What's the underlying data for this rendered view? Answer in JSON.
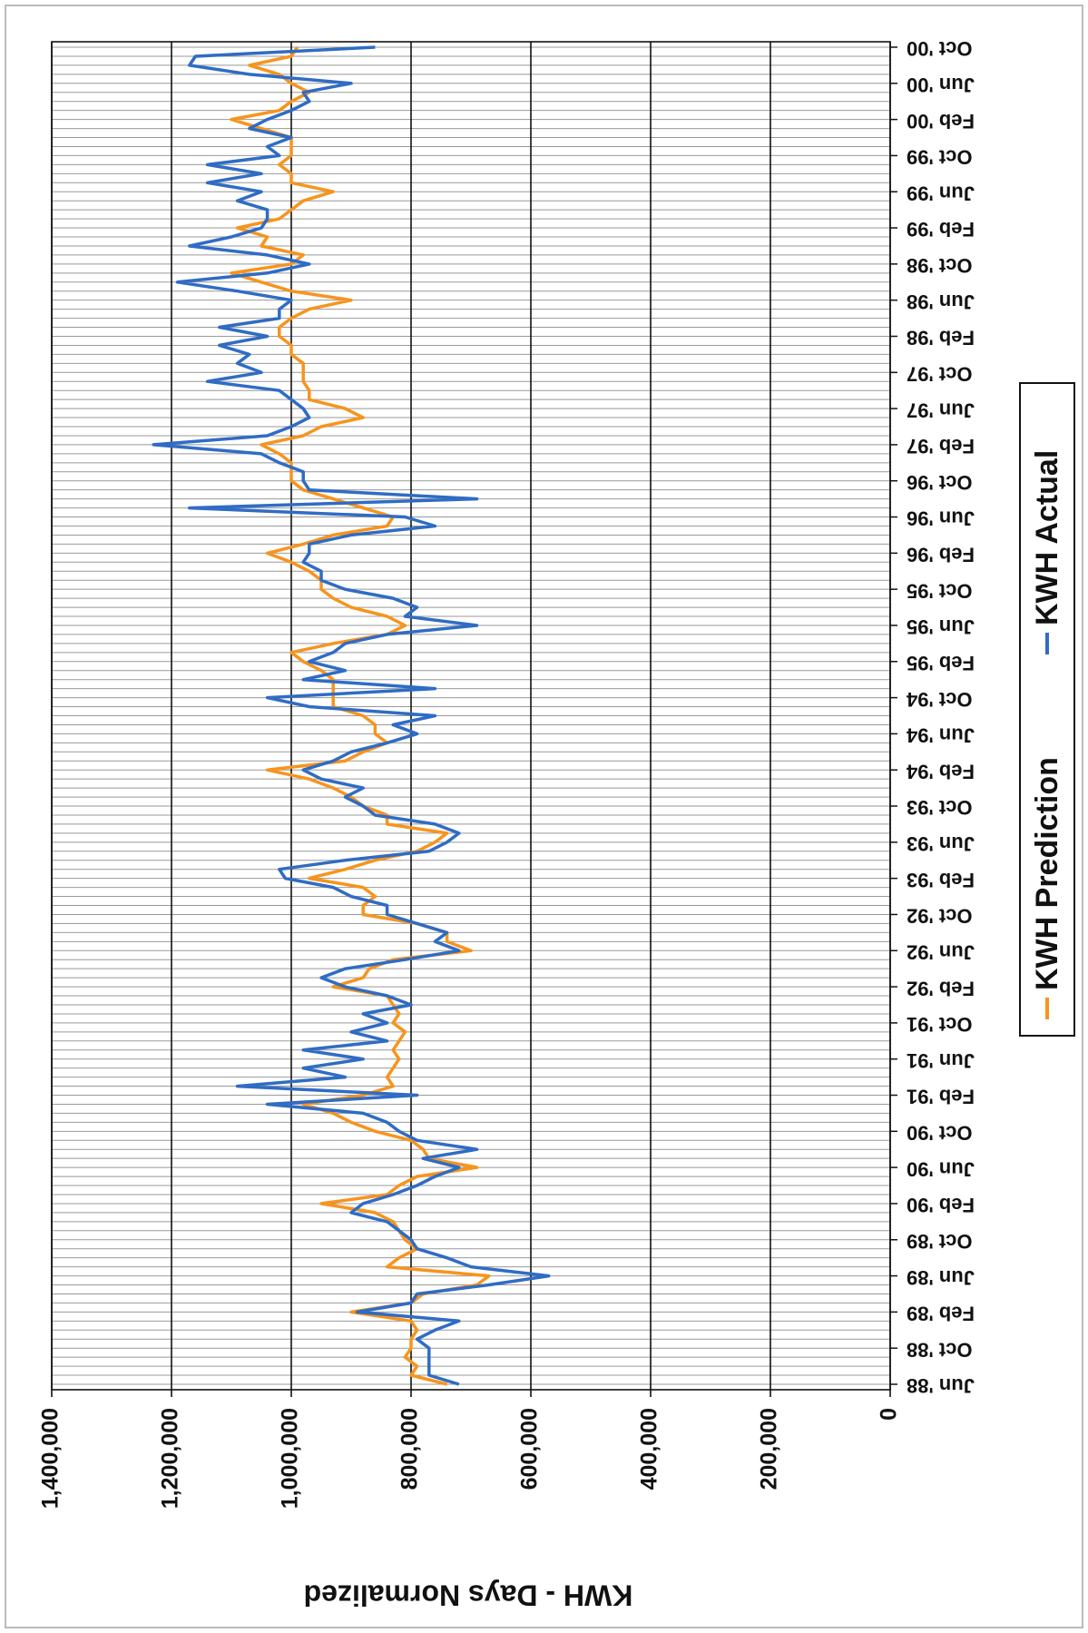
{
  "chart_data": {
    "type": "line",
    "ylabel": "KWH - Days Normalized",
    "categories": [
      "Jun '88",
      null,
      null,
      null,
      "Oct '88",
      null,
      null,
      null,
      "Feb '89",
      null,
      null,
      null,
      "Jun '89",
      null,
      null,
      null,
      "Oct '89",
      null,
      null,
      null,
      "Feb '90",
      null,
      null,
      null,
      "Jun '90",
      null,
      null,
      null,
      "Oct '90",
      null,
      null,
      null,
      "Feb '91",
      null,
      null,
      null,
      "Jun '91",
      null,
      null,
      null,
      "Oct '91",
      null,
      null,
      null,
      "Feb '92",
      null,
      null,
      null,
      "Jun '92",
      null,
      null,
      null,
      "Oct '92",
      null,
      null,
      null,
      "Feb '93",
      null,
      null,
      null,
      "Jun '93",
      null,
      null,
      null,
      "Oct '93",
      null,
      null,
      null,
      "Feb '94",
      null,
      null,
      null,
      "Jun '94",
      null,
      null,
      null,
      "Oct '94",
      null,
      null,
      null,
      "Feb '95",
      null,
      null,
      null,
      "Jun '95",
      null,
      null,
      null,
      "Oct '95",
      null,
      null,
      null,
      "Feb '96",
      null,
      null,
      null,
      "Jun '96",
      null,
      null,
      null,
      "Oct '96",
      null,
      null,
      null,
      "Feb '97",
      null,
      null,
      null,
      "Jun '97",
      null,
      null,
      null,
      "Oct '97",
      null,
      null,
      null,
      "Feb '98",
      null,
      null,
      null,
      "Jun '98",
      null,
      null,
      null,
      "Oct '98",
      null,
      null,
      null,
      "Feb '99",
      null,
      null,
      null,
      "Jun '99",
      null,
      null,
      null,
      "Oct '99",
      null,
      null,
      null,
      "Feb '00",
      null,
      null,
      null,
      "Jun '00",
      null,
      null,
      null,
      "Oct '00"
    ],
    "series": [
      {
        "name": "KWH Prediction",
        "color": "#f7941d",
        "values": [
          740000,
          800000,
          790000,
          810000,
          800000,
          800000,
          790000,
          800000,
          900000,
          800000,
          780000,
          690000,
          670000,
          840000,
          820000,
          790000,
          810000,
          820000,
          830000,
          860000,
          950000,
          840000,
          820000,
          790000,
          690000,
          770000,
          780000,
          800000,
          860000,
          900000,
          930000,
          980000,
          880000,
          830000,
          840000,
          830000,
          820000,
          830000,
          820000,
          810000,
          830000,
          820000,
          830000,
          840000,
          930000,
          880000,
          870000,
          830000,
          700000,
          740000,
          740000,
          790000,
          880000,
          880000,
          860000,
          880000,
          970000,
          910000,
          860000,
          790000,
          760000,
          740000,
          840000,
          840000,
          880000,
          900000,
          930000,
          970000,
          1040000,
          910000,
          880000,
          840000,
          860000,
          860000,
          880000,
          930000,
          930000,
          930000,
          930000,
          950000,
          980000,
          1000000,
          930000,
          840000,
          810000,
          840000,
          900000,
          930000,
          950000,
          950000,
          970000,
          1000000,
          1040000,
          980000,
          930000,
          840000,
          830000,
          880000,
          930000,
          980000,
          1000000,
          1000000,
          1000000,
          1020000,
          1050000,
          980000,
          950000,
          880000,
          910000,
          970000,
          970000,
          980000,
          980000,
          980000,
          1000000,
          1000000,
          1020000,
          1020000,
          1000000,
          970000,
          900000,
          1000000,
          1050000,
          1100000,
          1000000,
          980000,
          1050000,
          1040000,
          1090000,
          1020000,
          1000000,
          980000,
          930000,
          1000000,
          1000000,
          1020000,
          1000000,
          1000000,
          1000000,
          1050000,
          1100000,
          1020000,
          1000000,
          970000,
          1000000,
          1020000,
          1070000,
          1000000,
          990000
        ]
      },
      {
        "name": "KWH Actual",
        "color": "#2f6cc4",
        "values": [
          720000,
          770000,
          770000,
          770000,
          770000,
          790000,
          760000,
          720000,
          890000,
          800000,
          790000,
          670000,
          570000,
          700000,
          740000,
          790000,
          800000,
          820000,
          840000,
          900000,
          880000,
          830000,
          790000,
          760000,
          720000,
          780000,
          690000,
          790000,
          820000,
          840000,
          880000,
          1040000,
          790000,
          1090000,
          910000,
          980000,
          880000,
          980000,
          840000,
          900000,
          840000,
          880000,
          800000,
          840000,
          910000,
          950000,
          910000,
          810000,
          720000,
          760000,
          740000,
          790000,
          840000,
          840000,
          900000,
          930000,
          1010000,
          1020000,
          910000,
          770000,
          740000,
          720000,
          760000,
          860000,
          880000,
          910000,
          880000,
          950000,
          980000,
          930000,
          900000,
          840000,
          790000,
          830000,
          760000,
          970000,
          1040000,
          760000,
          980000,
          910000,
          970000,
          930000,
          910000,
          840000,
          690000,
          810000,
          790000,
          830000,
          910000,
          950000,
          950000,
          980000,
          970000,
          970000,
          900000,
          760000,
          810000,
          1170000,
          690000,
          970000,
          980000,
          980000,
          1020000,
          1050000,
          1230000,
          1040000,
          1000000,
          970000,
          980000,
          1000000,
          1020000,
          1140000,
          1050000,
          1090000,
          1070000,
          1120000,
          1040000,
          1120000,
          1020000,
          1020000,
          1000000,
          1090000,
          1190000,
          1040000,
          970000,
          1040000,
          1170000,
          1100000,
          1050000,
          1040000,
          1040000,
          1090000,
          1050000,
          1140000,
          1050000,
          1140000,
          1020000,
          1040000,
          1000000,
          1070000,
          1040000,
          1000000,
          970000,
          980000,
          900000,
          1070000,
          1170000,
          1160000,
          860000
        ]
      }
    ],
    "ylim": [
      0,
      1400000
    ],
    "yticks": [
      0,
      {
        "value": 200000,
        "label": "200,000"
      },
      {
        "value": 400000,
        "label": "400,000"
      },
      {
        "value": 600000,
        "label": "600,000"
      },
      {
        "value": 800000,
        "label": "800,000"
      },
      {
        "value": 1000000,
        "label": "1,000,000"
      },
      {
        "value": 1200000,
        "label": "1,200,000"
      },
      {
        "value": 1400000,
        "label": "1,400,000"
      }
    ],
    "grid": true,
    "legend": "right"
  }
}
